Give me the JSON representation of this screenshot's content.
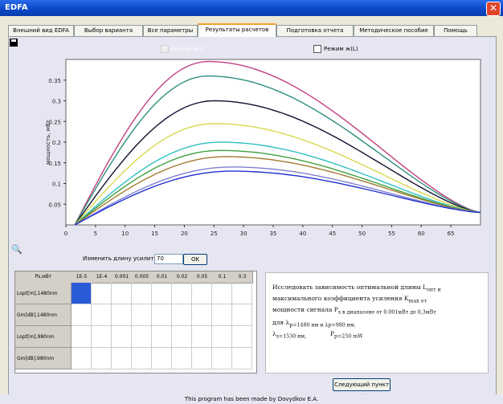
{
  "window": {
    "title": "EDFA",
    "close_glyph": "✕"
  },
  "tabs": [
    {
      "label": "Внешний вид EDFA"
    },
    {
      "label": "Выбор варианта"
    },
    {
      "label": "Все параметры"
    },
    {
      "label": "Результаты расчетов",
      "active": true
    },
    {
      "label": "Подготовка отчета"
    },
    {
      "label": "Методическое пособие"
    },
    {
      "label": "Помощь"
    }
  ],
  "toolbar": {
    "save_icon": "floppy-disk-icon",
    "zoom_icon": "magnifier-icon"
  },
  "checkboxes": {
    "left_label": "Режим ж(L)",
    "right_label": "Режим ж(L)"
  },
  "length_control": {
    "label": "Изменить длину усилителя",
    "value": "70",
    "ok_label": "OK"
  },
  "table": {
    "corner": "Ps,мВт",
    "columns": [
      "1E-5",
      "1E-4",
      "0.001",
      "0.005",
      "0.01",
      "0.02",
      "0.05",
      "0.1",
      "0.3"
    ],
    "rows": [
      "Lopt[m],1480nm",
      "Gm[dB],1480nm",
      "Lopt[m],980nm",
      "Gm[dB],980nm"
    ],
    "selected_cell": [
      0,
      0
    ]
  },
  "description": {
    "lines": [
      "Исследовать зависимость оптимальной длины L",
      "максимального коэффициента усиления K",
      "мощности сигнала P",
      "для λ",
      "λ",
      "P"
    ],
    "line_suffixes": [
      "опт и",
      "max от",
      "s в диапазоне от 0.001мВт до 0,3мВт",
      "p=1480 нм и λp=980 нм.",
      "s=1530 нм,",
      "p=250 mW"
    ]
  },
  "next_button": {
    "label": "Следующий пункт",
    "arrow": "➜"
  },
  "footer": "This program has been made by Dovydkov E.A.",
  "chart_data": {
    "type": "line",
    "ylabel": "мощность, мВт",
    "xlim": [
      0,
      70
    ],
    "ylim": [
      0,
      0.4
    ],
    "xticks": [
      0,
      5,
      10,
      15,
      20,
      25,
      30,
      35,
      40,
      45,
      50,
      55,
      60,
      65
    ],
    "yticks": [
      0.05,
      0.1,
      0.15,
      0.2,
      0.25,
      0.3,
      0.35
    ],
    "series": [
      {
        "color": "#c04080",
        "peak_x": 24,
        "peak_y": 0.395,
        "end_y": 0.03
      },
      {
        "color": "#2f8f7f",
        "peak_x": 24,
        "peak_y": 0.36,
        "end_y": 0.03
      },
      {
        "color": "#101030",
        "peak_x": 25,
        "peak_y": 0.3,
        "end_y": 0.03
      },
      {
        "color": "#d8d850",
        "peak_x": 25,
        "peak_y": 0.245,
        "end_y": 0.03
      },
      {
        "color": "#30c0c0",
        "peak_x": 26,
        "peak_y": 0.2,
        "end_y": 0.03
      },
      {
        "color": "#40a040",
        "peak_x": 26,
        "peak_y": 0.18,
        "end_y": 0.03
      },
      {
        "color": "#a07a30",
        "peak_x": 27,
        "peak_y": 0.165,
        "end_y": 0.03
      },
      {
        "color": "#8080d0",
        "peak_x": 28,
        "peak_y": 0.14,
        "end_y": 0.03
      },
      {
        "color": "#2030d0",
        "peak_x": 28,
        "peak_y": 0.13,
        "end_y": 0.03
      }
    ]
  }
}
